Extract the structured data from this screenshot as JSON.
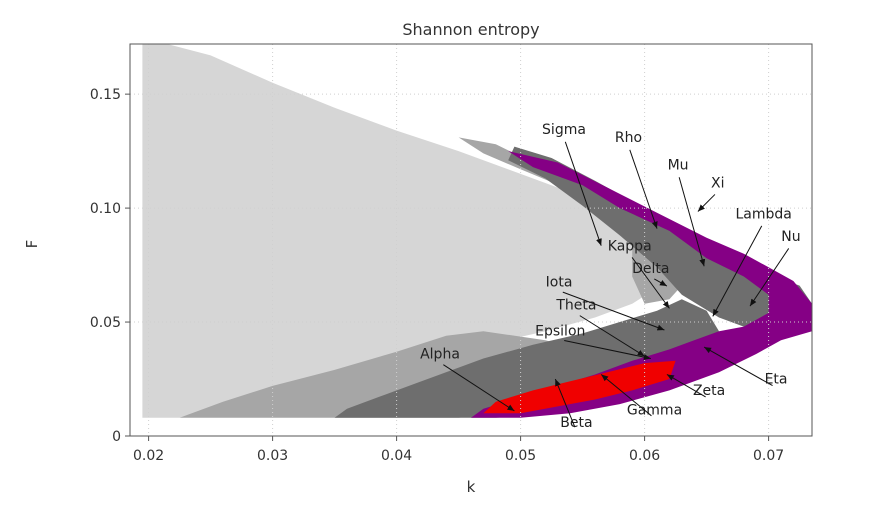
{
  "chart_data": {
    "type": "heatmap",
    "title": "Shannon entropy",
    "xlabel": "k",
    "ylabel": "F",
    "xlim": [
      0.0185,
      0.0735
    ],
    "ylim": [
      0,
      0.172
    ],
    "grid": true,
    "x_ticks": [
      {
        "value": 0.02,
        "label": "0.02"
      },
      {
        "value": 0.03,
        "label": "0.03"
      },
      {
        "value": 0.04,
        "label": "0.04"
      },
      {
        "value": 0.05,
        "label": "0.05"
      },
      {
        "value": 0.06,
        "label": "0.06"
      },
      {
        "value": 0.07,
        "label": "0.07"
      }
    ],
    "y_ticks": [
      {
        "value": 0,
        "label": "0"
      },
      {
        "value": 0.05,
        "label": "0.05"
      },
      {
        "value": 0.1,
        "label": "0.10"
      },
      {
        "value": 0.15,
        "label": "0.15"
      }
    ],
    "colors": {
      "light_gray": "#d6d6d6",
      "white_band": "#f2f2f2",
      "mid_gray": "#a6a6a6",
      "dark_gray": "#6e6e6e",
      "purple": "#850085",
      "red": "#f00000"
    },
    "regions": {
      "upper_light": [
        [
          0.0195,
          0.172
        ],
        [
          0.0215,
          0.172
        ],
        [
          0.025,
          0.167
        ],
        [
          0.03,
          0.155
        ],
        [
          0.035,
          0.144
        ],
        [
          0.04,
          0.134
        ],
        [
          0.045,
          0.125
        ],
        [
          0.05,
          0.115
        ],
        [
          0.055,
          0.105
        ],
        [
          0.058,
          0.095
        ],
        [
          0.06,
          0.085
        ],
        [
          0.061,
          0.075
        ],
        [
          0.061,
          0.065
        ],
        [
          0.059,
          0.058
        ],
        [
          0.056,
          0.052
        ],
        [
          0.052,
          0.046
        ],
        [
          0.048,
          0.041
        ],
        [
          0.044,
          0.036
        ],
        [
          0.04,
          0.031
        ],
        [
          0.035,
          0.025
        ],
        [
          0.03,
          0.02
        ],
        [
          0.026,
          0.014
        ],
        [
          0.0225,
          0.008
        ],
        [
          0.0195,
          0.008
        ]
      ],
      "upper_mid": [
        [
          0.045,
          0.131
        ],
        [
          0.048,
          0.128
        ],
        [
          0.051,
          0.12
        ],
        [
          0.055,
          0.11
        ],
        [
          0.058,
          0.1
        ],
        [
          0.061,
          0.09
        ],
        [
          0.063,
          0.08
        ],
        [
          0.064,
          0.072
        ],
        [
          0.062,
          0.06
        ],
        [
          0.06,
          0.058
        ],
        [
          0.059,
          0.07
        ],
        [
          0.059,
          0.085
        ],
        [
          0.057,
          0.097
        ],
        [
          0.054,
          0.108
        ],
        [
          0.05,
          0.117
        ],
        [
          0.047,
          0.124
        ]
      ],
      "upper_dark": [
        [
          0.0495,
          0.127
        ],
        [
          0.0525,
          0.122
        ],
        [
          0.056,
          0.112
        ],
        [
          0.06,
          0.1
        ],
        [
          0.064,
          0.088
        ],
        [
          0.067,
          0.078
        ],
        [
          0.07,
          0.071
        ],
        [
          0.0725,
          0.066
        ],
        [
          0.0735,
          0.058
        ],
        [
          0.072,
          0.05
        ],
        [
          0.069,
          0.046
        ],
        [
          0.066,
          0.052
        ],
        [
          0.063,
          0.062
        ],
        [
          0.061,
          0.074
        ],
        [
          0.058,
          0.088
        ],
        [
          0.055,
          0.101
        ],
        [
          0.052,
          0.113
        ],
        [
          0.049,
          0.121
        ]
      ],
      "lower_mid": [
        [
          0.0225,
          0.008
        ],
        [
          0.045,
          0.008
        ],
        [
          0.052,
          0.012
        ],
        [
          0.056,
          0.018
        ],
        [
          0.058,
          0.024
        ],
        [
          0.058,
          0.03
        ],
        [
          0.056,
          0.036
        ],
        [
          0.052,
          0.042
        ],
        [
          0.047,
          0.046
        ],
        [
          0.044,
          0.044
        ],
        [
          0.04,
          0.037
        ],
        [
          0.035,
          0.029
        ],
        [
          0.03,
          0.022
        ],
        [
          0.026,
          0.015
        ]
      ],
      "lower_dark": [
        [
          0.035,
          0.008
        ],
        [
          0.048,
          0.008
        ],
        [
          0.053,
          0.01
        ],
        [
          0.057,
          0.015
        ],
        [
          0.06,
          0.022
        ],
        [
          0.062,
          0.03
        ],
        [
          0.064,
          0.038
        ],
        [
          0.066,
          0.046
        ],
        [
          0.065,
          0.055
        ],
        [
          0.063,
          0.06
        ],
        [
          0.061,
          0.055
        ],
        [
          0.058,
          0.05
        ],
        [
          0.055,
          0.045
        ],
        [
          0.051,
          0.04
        ],
        [
          0.047,
          0.034
        ],
        [
          0.043,
          0.026
        ],
        [
          0.039,
          0.018
        ],
        [
          0.036,
          0.012
        ]
      ],
      "purple_upper": [
        [
          0.049,
          0.125
        ],
        [
          0.053,
          0.12
        ],
        [
          0.057,
          0.109
        ],
        [
          0.061,
          0.098
        ],
        [
          0.065,
          0.087
        ],
        [
          0.068,
          0.08
        ],
        [
          0.07,
          0.074
        ],
        [
          0.072,
          0.068
        ],
        [
          0.0735,
          0.058
        ],
        [
          0.0735,
          0.046
        ],
        [
          0.071,
          0.042
        ],
        [
          0.069,
          0.04
        ],
        [
          0.068,
          0.048
        ],
        [
          0.07,
          0.054
        ],
        [
          0.07,
          0.062
        ],
        [
          0.068,
          0.07
        ],
        [
          0.065,
          0.078
        ],
        [
          0.062,
          0.09
        ],
        [
          0.058,
          0.1
        ],
        [
          0.055,
          0.11
        ],
        [
          0.051,
          0.118
        ]
      ],
      "purple_lower": [
        [
          0.046,
          0.008
        ],
        [
          0.05,
          0.008
        ],
        [
          0.054,
          0.01
        ],
        [
          0.058,
          0.014
        ],
        [
          0.062,
          0.02
        ],
        [
          0.066,
          0.028
        ],
        [
          0.069,
          0.036
        ],
        [
          0.071,
          0.042
        ],
        [
          0.068,
          0.048
        ],
        [
          0.066,
          0.046
        ],
        [
          0.064,
          0.042
        ],
        [
          0.062,
          0.038
        ],
        [
          0.059,
          0.033
        ],
        [
          0.056,
          0.027
        ],
        [
          0.053,
          0.022
        ],
        [
          0.05,
          0.017
        ],
        [
          0.047,
          0.012
        ]
      ],
      "red": [
        [
          0.047,
          0.01
        ],
        [
          0.05,
          0.01
        ],
        [
          0.053,
          0.013
        ],
        [
          0.056,
          0.016
        ],
        [
          0.059,
          0.02
        ],
        [
          0.062,
          0.025
        ],
        [
          0.0625,
          0.033
        ],
        [
          0.06,
          0.032
        ],
        [
          0.057,
          0.028
        ],
        [
          0.054,
          0.024
        ],
        [
          0.051,
          0.02
        ],
        [
          0.048,
          0.015
        ]
      ]
    },
    "annotations": [
      {
        "label": "Delta",
        "text": [
          0.0605,
          0.0715
        ],
        "arrow": [
          0.0618,
          0.0658
        ]
      },
      {
        "label": "Sigma",
        "text": [
          0.0535,
          0.1325
        ],
        "arrow": [
          0.0565,
          0.0835
        ]
      },
      {
        "label": "Rho",
        "text": [
          0.0587,
          0.129
        ],
        "arrow": [
          0.061,
          0.091
        ]
      },
      {
        "label": "Mu",
        "text": [
          0.0627,
          0.117
        ],
        "arrow": [
          0.0648,
          0.0745
        ]
      },
      {
        "label": "Xi",
        "text": [
          0.0659,
          0.109
        ],
        "arrow": [
          0.0643,
          0.0985
        ]
      },
      {
        "label": "Lambda",
        "text": [
          0.0696,
          0.0955
        ],
        "arrow": [
          0.0655,
          0.0525
        ]
      },
      {
        "label": "Nu",
        "text": [
          0.0718,
          0.0855
        ],
        "arrow": [
          0.0685,
          0.057
        ]
      },
      {
        "label": "Kappa",
        "text": [
          0.0588,
          0.0815
        ],
        "arrow": [
          0.062,
          0.056
        ]
      },
      {
        "label": "Iota",
        "text": [
          0.0531,
          0.0655
        ],
        "arrow": [
          0.0616,
          0.0465
        ]
      },
      {
        "label": "Theta",
        "text": [
          0.0545,
          0.0555
        ],
        "arrow": [
          0.06,
          0.035
        ]
      },
      {
        "label": "Epsilon",
        "text": [
          0.0532,
          0.044
        ],
        "arrow": [
          0.0605,
          0.034
        ]
      },
      {
        "label": "Alpha",
        "text": [
          0.0435,
          0.034
        ],
        "arrow": [
          0.0495,
          0.011
        ]
      },
      {
        "label": "Beta",
        "text": [
          0.0545,
          0.004
        ],
        "arrow": [
          0.0528,
          0.025
        ]
      },
      {
        "label": "Gamma",
        "text": [
          0.0608,
          0.0095
        ],
        "arrow": [
          0.0565,
          0.027
        ]
      },
      {
        "label": "Zeta",
        "text": [
          0.0652,
          0.018
        ],
        "arrow": [
          0.0618,
          0.027
        ]
      },
      {
        "label": "Eta",
        "text": [
          0.0706,
          0.023
        ],
        "arrow": [
          0.0648,
          0.039
        ]
      }
    ]
  }
}
